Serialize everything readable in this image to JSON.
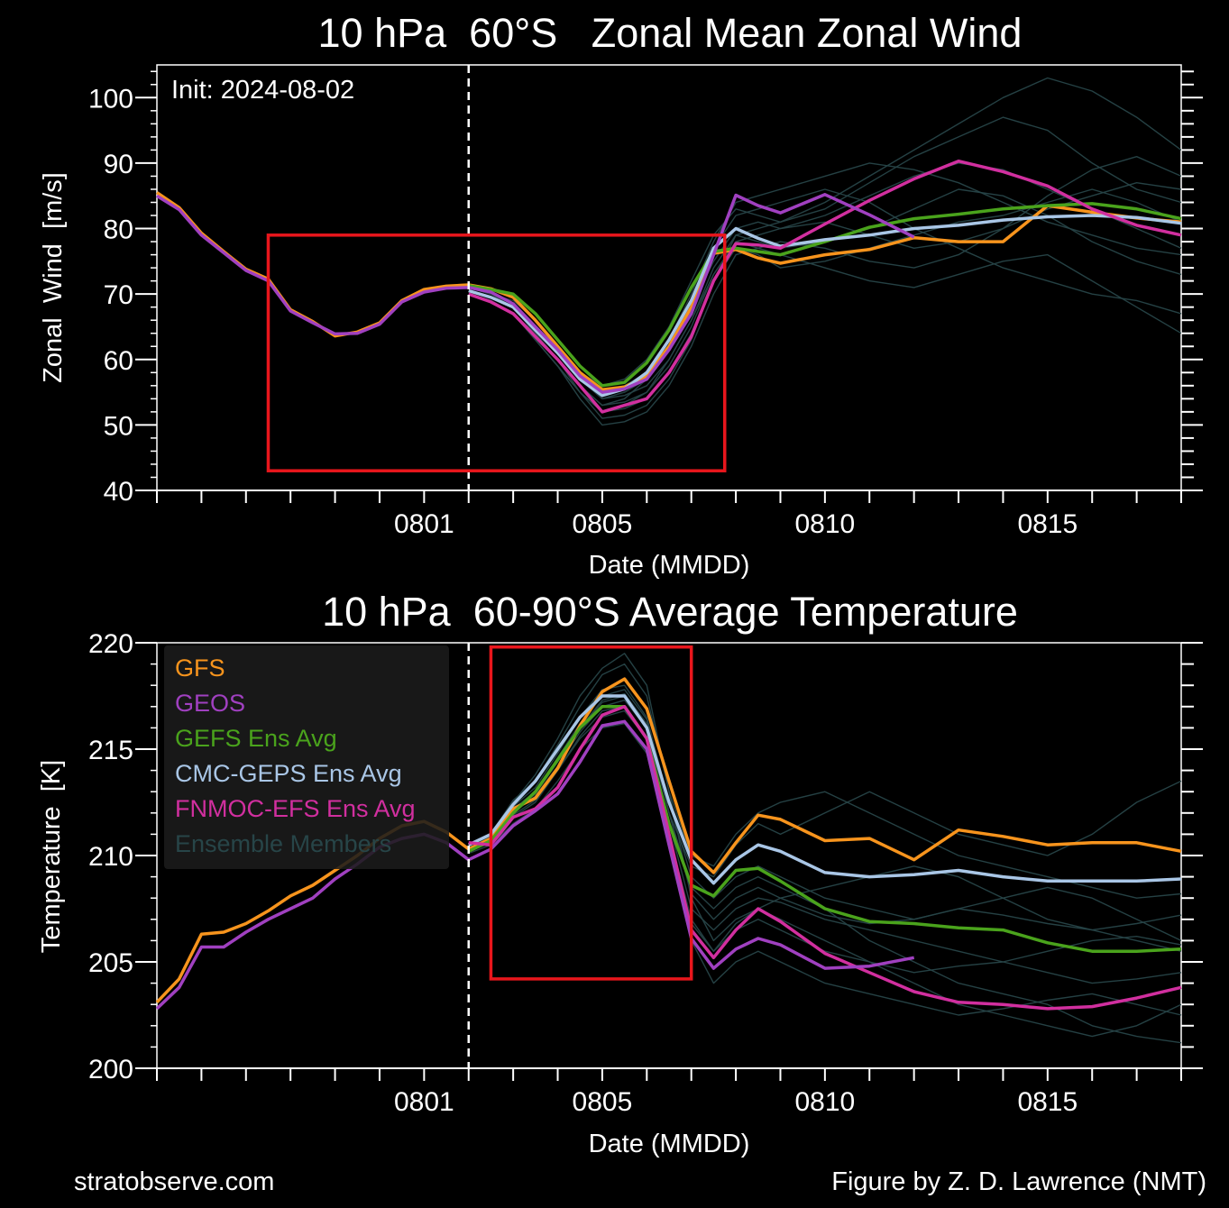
{
  "footer": {
    "left": "stratobserve.com",
    "right": "Figure by Z. D. Lawrence (NMT)"
  },
  "colors": {
    "GFS": "#f7941d",
    "GEOS": "#a040c0",
    "GEFS Ens Avg": "#4aa31c",
    "CMC-GEPS Ens Avg": "#a9c6e6",
    "FNMOC-EFS Ens Avg": "#d12f9f",
    "Ensemble Members": "#274548",
    "highlight_box": "#e8161c"
  },
  "chart_data": [
    {
      "type": "line",
      "title": "10 hPa  60°S   Zonal Mean Zonal Wind",
      "xlabel": "Date (MMDD)",
      "ylabel": "Zonal  Wind  [m/s]",
      "annotation": "Init: 2024-08-02",
      "init_date": "2024-08-02",
      "xlim": [
        "2024-07-26",
        "2024-08-18"
      ],
      "ylim": [
        40,
        105
      ],
      "yticks": [
        40,
        50,
        60,
        70,
        80,
        90,
        100
      ],
      "xticks": [
        {
          "date": "2024-08-01",
          "label": "0801"
        },
        {
          "date": "2024-08-05",
          "label": "0805"
        },
        {
          "date": "2024-08-10",
          "label": "0810"
        },
        {
          "date": "2024-08-15",
          "label": "0815"
        }
      ],
      "grid": false,
      "highlight_box": {
        "x": [
          "2024-07-28T12",
          "2024-08-07T18"
        ],
        "y": [
          43,
          79
        ]
      },
      "x_analysis": [
        "2024-07-26T00",
        "2024-07-26T12",
        "2024-07-27T00",
        "2024-07-27T12",
        "2024-07-28T00",
        "2024-07-28T12",
        "2024-07-29T00",
        "2024-07-29T12",
        "2024-07-30T00",
        "2024-07-30T12",
        "2024-07-31T00",
        "2024-07-31T12",
        "2024-08-01T00",
        "2024-08-01T12",
        "2024-08-02T00"
      ],
      "x_forecast": [
        "2024-08-02T00",
        "2024-08-02T12",
        "2024-08-03T00",
        "2024-08-03T12",
        "2024-08-04T00",
        "2024-08-04T12",
        "2024-08-05T00",
        "2024-08-05T12",
        "2024-08-06T00",
        "2024-08-06T12",
        "2024-08-07T00",
        "2024-08-07T12",
        "2024-08-08T00",
        "2024-08-08T12",
        "2024-08-09T00",
        "2024-08-10T00",
        "2024-08-11T00",
        "2024-08-12T00",
        "2024-08-13T00",
        "2024-08-14T00",
        "2024-08-15T00",
        "2024-08-16T00",
        "2024-08-17T00",
        "2024-08-18T00"
      ],
      "members": [
        [
          71,
          70,
          68,
          64,
          60,
          55,
          51,
          51.5,
          53,
          57,
          63,
          72,
          79,
          80,
          81,
          84,
          88,
          92,
          96,
          100,
          103,
          101,
          97,
          92
        ],
        [
          70,
          69,
          67,
          63,
          59,
          55,
          52,
          53,
          55,
          60,
          66,
          73,
          78,
          77,
          76,
          74,
          72,
          71,
          73,
          75,
          76,
          72,
          68,
          64
        ],
        [
          71,
          70,
          68,
          65,
          61,
          57,
          54,
          55,
          57,
          62,
          68,
          75,
          80,
          81,
          80,
          82,
          85,
          88,
          90,
          89,
          86,
          83,
          80,
          77
        ],
        [
          70,
          69,
          67,
          63,
          59,
          54,
          50,
          50.5,
          52,
          56,
          62,
          70,
          76,
          77,
          78,
          77,
          75,
          74,
          76,
          80,
          85,
          89,
          91,
          88
        ],
        [
          71,
          70,
          68,
          64,
          60,
          56,
          53,
          54,
          57,
          62,
          69,
          77,
          82,
          83,
          84,
          86,
          84,
          80,
          77,
          74,
          72,
          70,
          69,
          67
        ],
        [
          71,
          70,
          69,
          66,
          62,
          58,
          56,
          57,
          60,
          65,
          72,
          79,
          83,
          82,
          81,
          83,
          87,
          91,
          94,
          97,
          95,
          90,
          86,
          84
        ],
        [
          70,
          69,
          67,
          63,
          59,
          55,
          52,
          52.5,
          54,
          58,
          64,
          72,
          77,
          76,
          74,
          75,
          77,
          79,
          81,
          82,
          84,
          86,
          84,
          81
        ],
        [
          71,
          70,
          68,
          65,
          61,
          57,
          54,
          54.5,
          56,
          60,
          66,
          74,
          79,
          78,
          77,
          78,
          80,
          83,
          86,
          85,
          82,
          78,
          75,
          73
        ],
        [
          70,
          69,
          67,
          64,
          60,
          56,
          53,
          53.5,
          55,
          59,
          65,
          73,
          78,
          79,
          80,
          81,
          79,
          77,
          78,
          80,
          83,
          85,
          87,
          86
        ],
        [
          71,
          70,
          68,
          65,
          62,
          58,
          55,
          56,
          58,
          63,
          70,
          78,
          84,
          85,
          86,
          88,
          90,
          89,
          87,
          84,
          81,
          79,
          77,
          76
        ]
      ],
      "series": [
        {
          "name": "GFS",
          "analysis": [
            85.5,
            83.2,
            79.3,
            76.5,
            73.8,
            72.3,
            67.6,
            65.8,
            63.6,
            64.2,
            65.6,
            69,
            70.7,
            71.2,
            71.4
          ],
          "forecast": [
            71.4,
            70.8,
            69.5,
            66,
            62,
            58,
            55.4,
            55.8,
            57.5,
            62,
            68,
            76.2,
            76.8,
            75.5,
            74.7,
            76,
            76.8,
            78.6,
            78,
            78,
            83.5,
            82.5,
            81.6,
            81
          ]
        },
        {
          "name": "GEFS Ens Avg",
          "forecast": [
            71.3,
            70.7,
            70,
            67,
            63,
            59,
            56,
            56.5,
            59.5,
            64.5,
            71,
            76.5,
            77,
            76.5,
            76,
            78,
            80.2,
            81.5,
            82.2,
            83,
            83.5,
            83.8,
            83,
            81.5
          ]
        },
        {
          "name": "CMC-GEPS Ens Avg",
          "forecast": [
            70.5,
            69.5,
            68,
            64.5,
            61,
            57,
            54.5,
            55.5,
            58,
            63,
            69,
            77,
            80,
            78.5,
            77.3,
            78.3,
            79,
            80,
            80.5,
            81.3,
            81.8,
            82,
            81.7,
            80.8
          ]
        },
        {
          "name": "FNMOC-EFS Ens Avg",
          "forecast": [
            70,
            68.8,
            67,
            63.5,
            60,
            56,
            52,
            53,
            54,
            58,
            63.5,
            72,
            77.7,
            77.5,
            77,
            80.7,
            84.3,
            87.6,
            90.3,
            88.7,
            86.5,
            83,
            80.5,
            79
          ]
        },
        {
          "name": "GEOS",
          "analysis": [
            85,
            82.9,
            79,
            76.3,
            73.6,
            72,
            67.4,
            65.6,
            63.9,
            64,
            65.4,
            68.8,
            70.3,
            70.9,
            71
          ],
          "forecast": [
            71,
            70.3,
            68.5,
            65,
            61.5,
            57.5,
            55,
            55.5,
            57,
            61.5,
            67,
            76,
            85.1,
            83.5,
            82.4,
            85.2,
            82.1,
            78.7
          ]
        }
      ]
    },
    {
      "type": "line",
      "title": "10 hPa  60-90°S Average Temperature",
      "xlabel": "Date (MMDD)",
      "ylabel": "Temperature  [K]",
      "init_date": "2024-08-02",
      "xlim": [
        "2024-07-26",
        "2024-08-18"
      ],
      "ylim": [
        200,
        220
      ],
      "yticks": [
        200,
        205,
        210,
        215,
        220
      ],
      "xticks": [
        {
          "date": "2024-08-01",
          "label": "0801"
        },
        {
          "date": "2024-08-05",
          "label": "0805"
        },
        {
          "date": "2024-08-10",
          "label": "0810"
        },
        {
          "date": "2024-08-15",
          "label": "0815"
        }
      ],
      "grid": false,
      "legend": {
        "position": "top-left",
        "entries": [
          "GFS",
          "GEOS",
          "GEFS Ens Avg",
          "CMC-GEPS Ens Avg",
          "FNMOC-EFS Ens Avg",
          "Ensemble Members"
        ]
      },
      "highlight_box": {
        "x": [
          "2024-08-02T12",
          "2024-08-07T00"
        ],
        "y": [
          204.2,
          219.8
        ]
      },
      "x_analysis": [
        "2024-07-26T00",
        "2024-07-26T12",
        "2024-07-27T00",
        "2024-07-27T12",
        "2024-07-28T00",
        "2024-07-28T12",
        "2024-07-29T00",
        "2024-07-29T12",
        "2024-07-30T00",
        "2024-07-30T12",
        "2024-07-31T00",
        "2024-07-31T12",
        "2024-08-01T00",
        "2024-08-01T12",
        "2024-08-02T00"
      ],
      "x_forecast": [
        "2024-08-02T00",
        "2024-08-02T12",
        "2024-08-03T00",
        "2024-08-03T12",
        "2024-08-04T00",
        "2024-08-04T12",
        "2024-08-05T00",
        "2024-08-05T12",
        "2024-08-06T00",
        "2024-08-06T12",
        "2024-08-07T00",
        "2024-08-07T12",
        "2024-08-08T00",
        "2024-08-08T12",
        "2024-08-09T00",
        "2024-08-10T00",
        "2024-08-11T00",
        "2024-08-12T00",
        "2024-08-13T00",
        "2024-08-14T00",
        "2024-08-15T00",
        "2024-08-16T00",
        "2024-08-17T00",
        "2024-08-18T00"
      ],
      "members": [
        [
          210.5,
          211,
          212.5,
          213.8,
          215.5,
          217.5,
          218.8,
          219.5,
          218,
          213,
          208,
          206,
          207,
          207.5,
          207,
          206,
          205,
          204,
          203,
          202.5,
          202,
          201.5,
          202,
          203
        ],
        [
          210.3,
          210.8,
          212,
          213,
          214.5,
          216,
          217.2,
          217.5,
          216,
          212,
          209.5,
          209,
          210.5,
          211.5,
          211,
          212,
          213,
          212,
          211,
          210.5,
          210,
          211,
          212.5,
          213.5
        ],
        [
          210.2,
          210.6,
          211.8,
          212.5,
          214,
          215.5,
          216.5,
          216.8,
          215.5,
          211,
          207,
          205.5,
          206.5,
          207,
          206.5,
          205.5,
          205,
          204.5,
          204.8,
          205,
          205.5,
          206,
          206.2,
          205.8
        ],
        [
          210.4,
          210.9,
          212.3,
          213.2,
          214.8,
          216.5,
          217.8,
          218,
          216.5,
          212.5,
          209,
          208,
          209,
          209.5,
          209,
          208,
          207.5,
          207,
          207.5,
          208,
          208.5,
          208,
          207,
          206
        ],
        [
          210.1,
          210.5,
          211.5,
          212.2,
          213.5,
          215,
          216,
          216.2,
          214.8,
          210.5,
          206,
          204,
          205,
          205.5,
          205,
          204,
          203.5,
          203,
          202.5,
          202.8,
          203.2,
          203.5,
          203,
          202.5
        ],
        [
          210.5,
          211,
          212.6,
          213.5,
          215.2,
          217,
          218.5,
          219,
          217.5,
          213,
          210,
          209.5,
          211,
          212,
          212.5,
          213,
          212,
          211,
          210,
          209.5,
          209,
          208.5,
          208,
          208.2
        ],
        [
          210.3,
          210.7,
          212,
          212.8,
          214.2,
          215.8,
          217,
          217.3,
          216,
          211.5,
          207.5,
          206.5,
          207.5,
          208,
          207.8,
          207,
          206.5,
          206,
          205.5,
          205,
          204.5,
          204,
          204.2,
          204.5
        ],
        [
          210.2,
          210.6,
          211.9,
          212.6,
          214,
          215.6,
          216.8,
          217,
          215.6,
          211,
          206.8,
          205.5,
          206.8,
          207.5,
          208,
          208.5,
          209,
          209.5,
          209,
          208,
          207,
          206.5,
          206,
          205.5
        ],
        [
          210.4,
          210.8,
          212.2,
          213,
          214.6,
          216.2,
          217.5,
          217.8,
          216.4,
          212,
          208.5,
          207.5,
          208.5,
          209,
          208.5,
          207.5,
          206,
          205,
          204,
          203.5,
          203,
          202,
          201.5,
          201.2
        ],
        [
          210.3,
          210.8,
          212.1,
          212.9,
          214.4,
          216,
          217.3,
          217.6,
          216.2,
          212,
          208.2,
          207,
          208,
          208.5,
          208,
          207.2,
          206.8,
          207,
          207.5,
          207.2,
          206.8,
          206.5,
          206.8,
          207.2
        ]
      ],
      "series": [
        {
          "name": "GFS",
          "analysis": [
            203.1,
            204.2,
            206.3,
            206.4,
            206.8,
            207.4,
            208.1,
            208.6,
            209.3,
            210,
            210.8,
            211.4,
            211.6,
            211.1,
            210.3
          ],
          "forecast": [
            210.3,
            210.8,
            212.2,
            212.7,
            214.1,
            216.1,
            217.7,
            218.3,
            216.9,
            213.5,
            210.2,
            209.2,
            210.6,
            211.9,
            211.7,
            210.7,
            210.8,
            209.8,
            211.2,
            210.9,
            210.5,
            210.6,
            210.6,
            210.2
          ]
        },
        {
          "name": "GEFS Ens Avg",
          "forecast": [
            210.2,
            210.7,
            212,
            213,
            214.5,
            216,
            217,
            217,
            215.5,
            211.5,
            208.6,
            208.1,
            209.3,
            209.4,
            208.8,
            207.5,
            206.9,
            206.8,
            206.6,
            206.5,
            205.9,
            205.5,
            205.5,
            205.6
          ]
        },
        {
          "name": "CMC-GEPS Ens Avg",
          "forecast": [
            210.5,
            211,
            212.4,
            213.5,
            215,
            216.5,
            217.5,
            217.5,
            216,
            212.5,
            209.8,
            208.7,
            209.8,
            210.5,
            210.2,
            209.2,
            209,
            209.1,
            209.3,
            209,
            208.8,
            208.8,
            208.8,
            208.9
          ]
        },
        {
          "name": "FNMOC-EFS Ens Avg",
          "forecast": [
            210.6,
            210.5,
            211.8,
            212.2,
            213.2,
            215,
            216.6,
            217,
            215.5,
            211,
            206.5,
            205.2,
            206.5,
            207.5,
            206.9,
            205.4,
            204.5,
            203.6,
            203.1,
            203,
            202.8,
            202.9,
            203.3,
            203.8
          ]
        },
        {
          "name": "GEOS",
          "analysis": [
            202.8,
            203.8,
            205.7,
            205.7,
            206.4,
            207,
            207.5,
            208,
            208.9,
            209.6,
            210.4,
            210.8,
            211,
            210.6,
            209.8
          ],
          "forecast": [
            209.8,
            210.3,
            211.4,
            212.1,
            212.9,
            214.4,
            216.1,
            216.3,
            215,
            210.5,
            206.1,
            204.7,
            205.6,
            206.1,
            205.8,
            204.7,
            204.8,
            205.2
          ]
        }
      ]
    }
  ]
}
